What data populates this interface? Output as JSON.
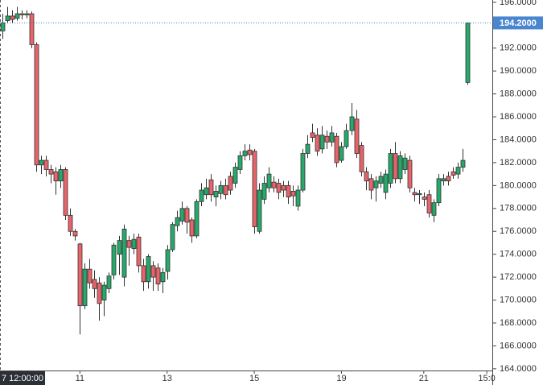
{
  "chart_data": {
    "type": "candlestick",
    "categories": [
      "7 12:00:00",
      null,
      null,
      null,
      null,
      null,
      null,
      null,
      null,
      null,
      null,
      null,
      null,
      null,
      null,
      null,
      "11",
      null,
      null,
      null,
      null,
      null,
      null,
      null,
      null,
      null,
      null,
      null,
      null,
      null,
      null,
      null,
      null,
      null,
      "13",
      null,
      null,
      null,
      null,
      null,
      null,
      null,
      null,
      null,
      null,
      null,
      null,
      null,
      null,
      null,
      null,
      null,
      "15",
      null,
      null,
      null,
      null,
      null,
      null,
      null,
      null,
      null,
      null,
      null,
      null,
      null,
      null,
      null,
      null,
      null,
      "19",
      null,
      null,
      null,
      null,
      null,
      null,
      null,
      null,
      null,
      null,
      null,
      null,
      null,
      null,
      null,
      null,
      "21",
      null,
      null,
      null,
      null,
      null,
      null,
      null,
      null,
      null,
      null,
      null,
      null,
      "15:0"
    ],
    "open": [
      193.5,
      194.4,
      194.8,
      194.6,
      195.0,
      194.9,
      195.0,
      192.3,
      181.8,
      182.2,
      181.4,
      181.2,
      180.4,
      181.4,
      177.4,
      176.0,
      174.9,
      169.5,
      172.7,
      171.8,
      171.5,
      170.0,
      171.0,
      172.2,
      174.0,
      172.0,
      175.2,
      174.5,
      175.5,
      173.0,
      171.6,
      173.0,
      172.8,
      171.6,
      172.5,
      174.4,
      176.5,
      176.9,
      178.0,
      177.0,
      175.6,
      178.6,
      179.2,
      180.5,
      179.0,
      179.3,
      180.0,
      180.8,
      180.2,
      181.4,
      182.6,
      183.1,
      183.0,
      176.0,
      178.8,
      179.8,
      180.3,
      180.2,
      180.0,
      180.0,
      179.5,
      178.2,
      179.6,
      182.8,
      184.6,
      184.4,
      183.2,
      184.3,
      183.8,
      184.3,
      182.2,
      183.4,
      184.8,
      185.8,
      183.5,
      181.2,
      180.6,
      179.8,
      180.2,
      179.4,
      180.2,
      182.8,
      180.6,
      181.4,
      182.2,
      179.4,
      179.2,
      179.0,
      179.2,
      177.4,
      178.5,
      180.4,
      180.8,
      181.2,
      181.0,
      181.6,
      189.0,
      null,
      null,
      null,
      null
    ],
    "high": [
      195.0,
      195.6,
      195.3,
      195.6,
      195.3,
      195.3,
      195.2,
      192.5,
      182.6,
      182.6,
      181.8,
      181.6,
      181.8,
      181.6,
      178.0,
      176.2,
      175.0,
      173.2,
      173.6,
      172.6,
      172.0,
      171.6,
      172.4,
      175.0,
      175.6,
      176.6,
      175.6,
      175.8,
      175.8,
      173.6,
      174.0,
      173.4,
      173.2,
      172.8,
      174.8,
      176.8,
      177.8,
      178.6,
      178.2,
      177.2,
      178.8,
      180.2,
      180.6,
      181.0,
      180.0,
      180.4,
      180.6,
      181.2,
      182.0,
      183.0,
      183.6,
      183.6,
      183.2,
      180.2,
      180.8,
      181.6,
      180.8,
      180.6,
      180.4,
      180.4,
      180.0,
      180.0,
      183.2,
      184.4,
      185.4,
      185.0,
      185.2,
      184.8,
      185.2,
      184.6,
      183.8,
      185.4,
      187.2,
      186.6,
      183.8,
      181.6,
      181.0,
      180.8,
      181.2,
      181.4,
      183.2,
      183.8,
      183.0,
      182.8,
      182.6,
      179.8,
      179.6,
      179.4,
      179.6,
      178.8,
      181.0,
      181.0,
      181.2,
      181.6,
      182.0,
      183.2,
      194.2,
      null,
      null,
      null,
      null
    ],
    "low": [
      192.8,
      194.2,
      194.2,
      194.4,
      194.5,
      194.6,
      192.0,
      181.2,
      181.0,
      180.8,
      180.2,
      179.2,
      179.8,
      177.0,
      175.6,
      175.2,
      167.0,
      169.2,
      171.0,
      170.2,
      168.2,
      168.6,
      170.6,
      171.8,
      172.2,
      171.2,
      173.0,
      174.0,
      172.4,
      170.8,
      171.0,
      170.8,
      170.8,
      170.6,
      171.8,
      174.2,
      176.0,
      176.6,
      175.8,
      175.0,
      175.4,
      178.2,
      178.8,
      178.6,
      178.2,
      178.8,
      178.8,
      179.2,
      179.8,
      181.0,
      182.2,
      182.2,
      175.8,
      175.8,
      178.4,
      179.4,
      179.4,
      178.8,
      179.0,
      178.4,
      178.2,
      177.8,
      179.4,
      182.4,
      183.8,
      182.6,
      182.8,
      183.2,
      183.4,
      181.6,
      182.0,
      183.2,
      184.4,
      182.4,
      180.8,
      179.6,
      178.8,
      178.6,
      179.8,
      178.8,
      179.8,
      180.2,
      180.2,
      181.0,
      179.4,
      178.6,
      178.4,
      178.2,
      177.2,
      176.8,
      178.2,
      180.0,
      180.0,
      180.6,
      180.6,
      181.2,
      188.8,
      null,
      null,
      null,
      null
    ],
    "close": [
      194.2,
      194.8,
      194.5,
      195.0,
      194.9,
      195.0,
      192.3,
      181.8,
      182.2,
      181.4,
      181.0,
      180.4,
      181.4,
      177.4,
      176.0,
      175.6,
      169.5,
      172.7,
      171.5,
      171.0,
      169.7,
      171.3,
      172.1,
      174.8,
      175.2,
      176.2,
      174.6,
      175.3,
      173.0,
      171.6,
      173.8,
      172.0,
      171.4,
      172.4,
      174.4,
      176.6,
      177.2,
      178.0,
      176.8,
      175.6,
      178.6,
      179.6,
      179.8,
      179.2,
      179.5,
      180.0,
      179.2,
      179.6,
      181.6,
      182.6,
      183.0,
      182.7,
      176.4,
      179.6,
      180.2,
      181.0,
      179.8,
      179.4,
      179.6,
      179.0,
      179.1,
      179.6,
      182.8,
      183.6,
      184.2,
      183.0,
      184.4,
      183.8,
      184.6,
      182.0,
      183.4,
      184.8,
      186.0,
      182.8,
      181.2,
      180.4,
      179.6,
      180.4,
      180.8,
      181.0,
      182.8,
      180.6,
      182.6,
      182.4,
      179.8,
      179.2,
      179.3,
      178.8,
      177.6,
      178.5,
      180.6,
      180.6,
      180.4,
      180.9,
      181.6,
      182.2,
      194.2,
      null,
      null,
      null,
      null
    ],
    "up_color": "#26a96a",
    "down_color": "#e8646b",
    "last_price": {
      "value": 194.2,
      "label": "194.2000"
    },
    "ylim": [
      163.85,
      196.2
    ],
    "yticks": [
      {
        "value": 164,
        "label": "164.0000"
      },
      {
        "value": 166,
        "label": "166.0000"
      },
      {
        "value": 168,
        "label": "168.0000"
      },
      {
        "value": 170,
        "label": "170.0000"
      },
      {
        "value": 172,
        "label": "172.0000"
      },
      {
        "value": 174,
        "label": "174.0000"
      },
      {
        "value": 176,
        "label": "176.0000"
      },
      {
        "value": 178,
        "label": "178.0000"
      },
      {
        "value": 180,
        "label": "180.0000"
      },
      {
        "value": 182,
        "label": "182.0000"
      },
      {
        "value": 184,
        "label": "184.0000"
      },
      {
        "value": 186,
        "label": "186.0000"
      },
      {
        "value": 188,
        "label": "188.0000"
      },
      {
        "value": 190,
        "label": "190.0000"
      },
      {
        "value": 192,
        "label": "192.0000"
      },
      {
        "value": 196,
        "label": "196.0000"
      }
    ]
  }
}
